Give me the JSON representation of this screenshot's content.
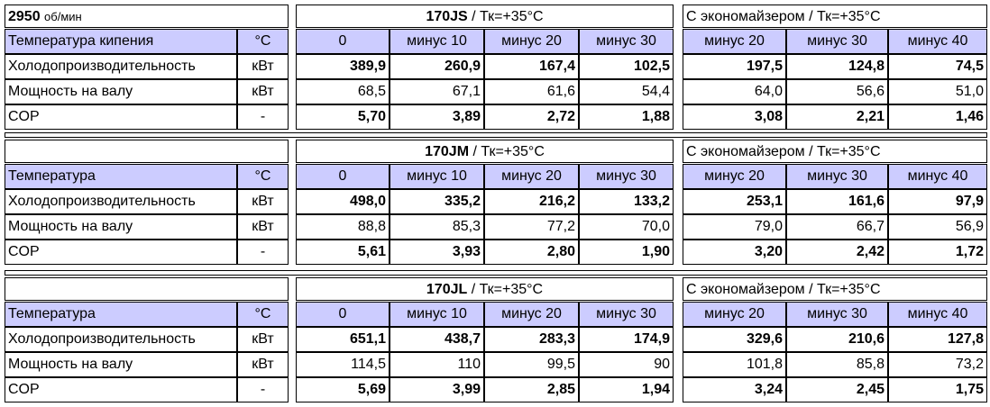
{
  "speed": "2950",
  "speed_unit": "об/мин",
  "blocks": [
    {
      "model": "170JS",
      "suffix": " / Тк=+35°C",
      "eco_title": "С экономайзером / Тк=+35°C",
      "header": [
        "Температура кипения",
        "°C",
        "0",
        "минус 10",
        "минус 20",
        "минус 30",
        "минус 20",
        "минус 30",
        "минус 40"
      ],
      "rows": [
        [
          "Холодопроизводительность",
          "кВт",
          "389,9",
          "260,9",
          "167,4",
          "102,5",
          "197,5",
          "124,8",
          "74,5"
        ],
        [
          "Мощность на валу",
          "кВт",
          "68,5",
          "67,1",
          "61,6",
          "54,4",
          "64,0",
          "56,6",
          "51,0"
        ],
        [
          "COP",
          "-",
          "5,70",
          "3,89",
          "2,72",
          "1,88",
          "3,08",
          "2,21",
          "1,46"
        ]
      ]
    },
    {
      "model": "170JM",
      "suffix": " / Тк=+35°C",
      "eco_title": "С экономайзером / Тк=+35°C",
      "header": [
        "Температура",
        "°C",
        "0",
        "минус 10",
        "минус 20",
        "минус 30",
        "минус 20",
        "минус 30",
        "минус 40"
      ],
      "rows": [
        [
          "Холодопроизводительность",
          "кВт",
          "498,0",
          "335,2",
          "216,2",
          "133,2",
          "253,1",
          "161,6",
          "97,9"
        ],
        [
          "Мощность на валу",
          "кВт",
          "88,8",
          "85,3",
          "77,2",
          "70,0",
          "79,0",
          "66,7",
          "56,9"
        ],
        [
          "COP",
          "-",
          "5,61",
          "3,93",
          "2,80",
          "1,90",
          "3,20",
          "2,42",
          "1,72"
        ]
      ]
    },
    {
      "model": "170JL",
      "suffix": " / Тк=+35°C",
      "eco_title": "С экономайзером / Тк=+35°C",
      "header": [
        "Температура",
        "°C",
        "0",
        "минус 10",
        "минус 20",
        "минус 30",
        "минус 20",
        "минус 30",
        "минус 40"
      ],
      "rows": [
        [
          "Холодопроизводительность",
          "кВт",
          "651,1",
          "438,7",
          "283,3",
          "174,9",
          "329,6",
          "210,6",
          "127,8"
        ],
        [
          "Мощность на валу",
          "кВт",
          "114,5",
          "110",
          "99,5",
          "90",
          "101,8",
          "85,8",
          "73,2"
        ],
        [
          "COP",
          "-",
          "5,69",
          "3,99",
          "2,85",
          "1,94",
          "3,24",
          "2,45",
          "1,75"
        ]
      ]
    }
  ]
}
